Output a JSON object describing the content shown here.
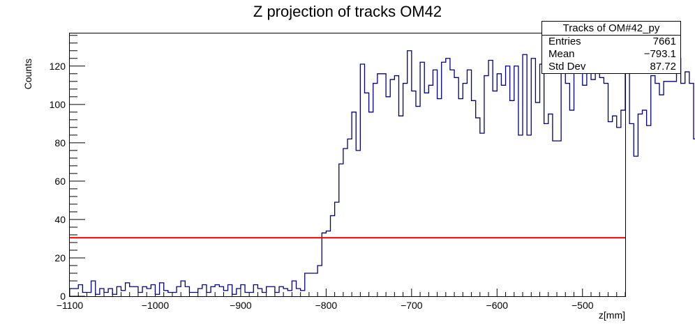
{
  "chart_data": {
    "type": "bar",
    "title": "Z projection of tracks OM42",
    "xlabel": "z[mm]",
    "ylabel": "Counts",
    "xlim": [
      -1100,
      -450
    ],
    "ylim": [
      0,
      137
    ],
    "x_ticks": [
      -1100,
      -1000,
      -900,
      -800,
      -700,
      -600,
      -500
    ],
    "x_tick_labels": [
      "−1100",
      "−1000",
      "−900",
      "−800",
      "−700",
      "−600",
      "−500"
    ],
    "y_ticks": [
      0,
      20,
      40,
      60,
      80,
      100,
      120
    ],
    "y_tick_labels": [
      "0",
      "20",
      "40",
      "60",
      "80",
      "100",
      "120"
    ],
    "bin_width": 5,
    "bin_start": -1100,
    "values": [
      4,
      4,
      6,
      2,
      2,
      8,
      1,
      4,
      2,
      4,
      1,
      5,
      3,
      7,
      5,
      5,
      2,
      5,
      4,
      6,
      1,
      7,
      3,
      2,
      2,
      5,
      8,
      5,
      2,
      2,
      4,
      6,
      2,
      5,
      6,
      5,
      3,
      6,
      1,
      4,
      6,
      2,
      2,
      6,
      4,
      2,
      5,
      5,
      2,
      5,
      4,
      3,
      8,
      4,
      3,
      12,
      12,
      12,
      16,
      33,
      34,
      42,
      49,
      69,
      77,
      82,
      96,
      76,
      121,
      106,
      96,
      111,
      116,
      116,
      104,
      113,
      115,
      94,
      111,
      128,
      107,
      99,
      122,
      106,
      110,
      118,
      103,
      122,
      124,
      118,
      114,
      103,
      111,
      118,
      102,
      93,
      85,
      115,
      123,
      107,
      116,
      110,
      120,
      102,
      120,
      84,
      126,
      84,
      124,
      101,
      121,
      90,
      95,
      81,
      81,
      119,
      111,
      97,
      118,
      128,
      110,
      119,
      113,
      124,
      114,
      111,
      91,
      94,
      88,
      97,
      124,
      90,
      73,
      95,
      97,
      89,
      115,
      111,
      105,
      112,
      112,
      112,
      124,
      111,
      117,
      111,
      82,
      96,
      100,
      99,
      107,
      103,
      107,
      92,
      96,
      94,
      81,
      92,
      113,
      96,
      99,
      110,
      112,
      110,
      96,
      105,
      99,
      99,
      105,
      108,
      109,
      109,
      100,
      88,
      84,
      84,
      92,
      83,
      86,
      84,
      72,
      65,
      56,
      37,
      36,
      37,
      25,
      29,
      20,
      12,
      13,
      16,
      14,
      5,
      6,
      5,
      3,
      3,
      3,
      2,
      2,
      1,
      2,
      1,
      1,
      1,
      1,
      0,
      1,
      1,
      0,
      0,
      1,
      1,
      0,
      0,
      0,
      1,
      2,
      1,
      0,
      1,
      2,
      1,
      1,
      1,
      0,
      1,
      0,
      0,
      0,
      0,
      1,
      3,
      1,
      0,
      0,
      1,
      1,
      0,
      1,
      1,
      0,
      0,
      2,
      2,
      4,
      1,
      2,
      0,
      3,
      2,
      1,
      2,
      1,
      2,
      0,
      2,
      1,
      1,
      1,
      1,
      0,
      1,
      0,
      2,
      2,
      0
    ],
    "line_color": "#00007f",
    "reference_line": {
      "y": 30.5,
      "color": "#ff0000"
    },
    "stats": {
      "title": "Tracks of OM#42_py",
      "rows": [
        {
          "label": "Entries",
          "value": "7661"
        },
        {
          "label": "Mean",
          "value": "−793.1"
        },
        {
          "label": "Std Dev",
          "value": "87.72"
        }
      ]
    }
  }
}
